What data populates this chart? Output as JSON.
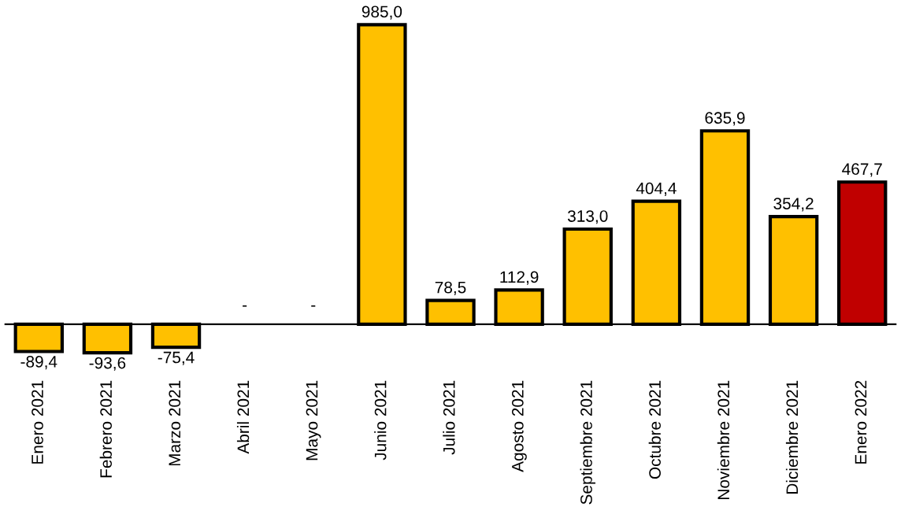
{
  "chart_data": {
    "type": "bar",
    "categories": [
      "Enero 2021",
      "Febrero 2021",
      "Marzo 2021",
      "Abril 2021",
      "Mayo 2021",
      "Junio 2021",
      "Julio 2021",
      "Agosto 2021",
      "Septiembre 2021",
      "Octubre 2021",
      "Noviembre 2021",
      "Diciembre 2021",
      "Enero 2022"
    ],
    "values": [
      -89.4,
      -93.6,
      -75.4,
      null,
      null,
      985.0,
      78.5,
      112.9,
      313.0,
      404.4,
      635.9,
      354.2,
      467.7
    ],
    "colors": [
      "#ffc000",
      "#ffc000",
      "#ffc000",
      "#ffc000",
      "#ffc000",
      "#ffc000",
      "#ffc000",
      "#ffc000",
      "#ffc000",
      "#ffc000",
      "#ffc000",
      "#ffc000",
      "#c00000"
    ],
    "value_labels": [
      "-89,4",
      "-93,6",
      "-75,4",
      "-",
      "-",
      "985,0",
      "78,5",
      "112,9",
      "313,0",
      "404,4",
      "635,9",
      "354,2",
      "467,7"
    ],
    "grid": false,
    "legend": false
  }
}
